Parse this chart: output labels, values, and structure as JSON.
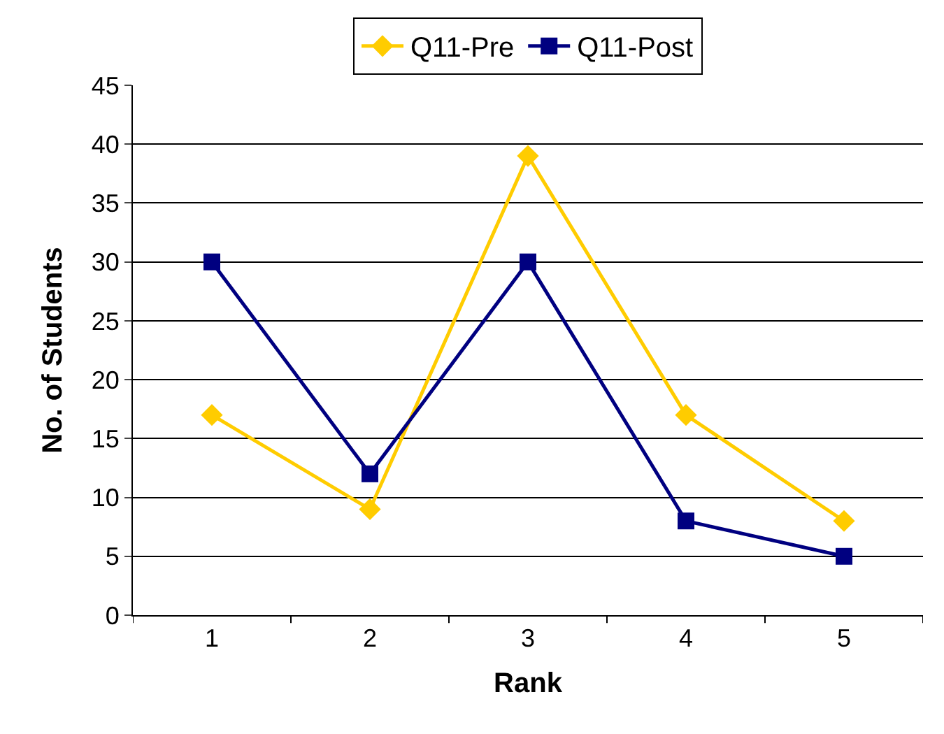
{
  "chart_data": {
    "type": "line",
    "xlabel": "Rank",
    "ylabel": "No. of Students",
    "categories": [
      "1",
      "2",
      "3",
      "4",
      "5"
    ],
    "series": [
      {
        "name": "Q11-Pre",
        "color": "#ffcc00",
        "marker": "diamond",
        "values": [
          17,
          9,
          39,
          17,
          8
        ]
      },
      {
        "name": "Q11-Post",
        "color": "#000080",
        "marker": "square",
        "values": [
          30,
          12,
          30,
          8,
          5
        ]
      }
    ],
    "ylim": [
      0,
      45
    ],
    "yticks": [
      0,
      5,
      10,
      15,
      20,
      25,
      30,
      35,
      40,
      45
    ],
    "grid": "y",
    "legend": "top",
    "line_style": "solid"
  }
}
